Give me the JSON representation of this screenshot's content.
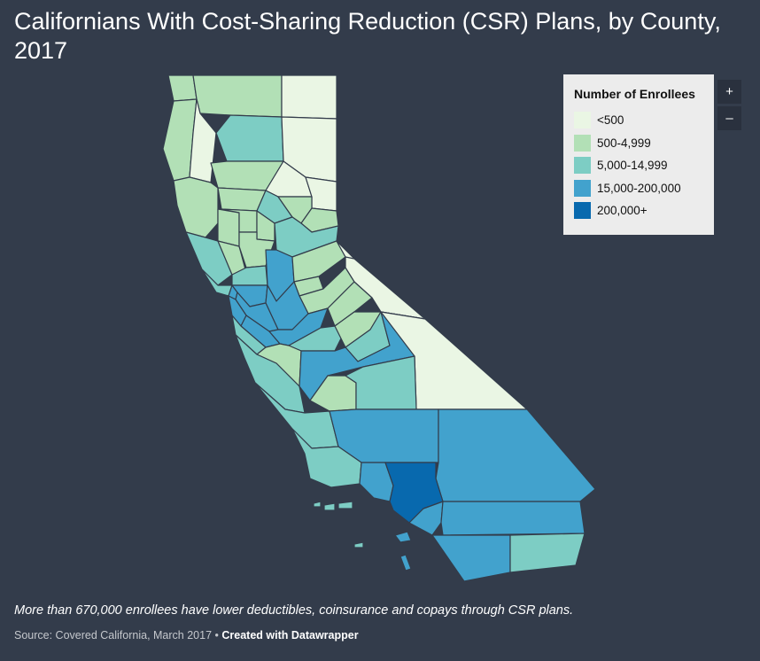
{
  "title": "Californians With Cost-Sharing Reduction (CSR) Plans, by County, 2017",
  "legend": {
    "title": "Number of Enrollees",
    "items": [
      {
        "label": "<500",
        "color": "#eaf6e4"
      },
      {
        "label": "500-4,999",
        "color": "#b2e0b6"
      },
      {
        "label": "5,000-14,999",
        "color": "#7dcdc4"
      },
      {
        "label": "15,000-200,000",
        "color": "#42a2cd"
      },
      {
        "label": "200,000+",
        "color": "#0869ae"
      }
    ]
  },
  "zoom": {
    "in_label": "+",
    "out_label": "–"
  },
  "note": "More than 670,000 enrollees have lower deductibles, coinsurance and copays through CSR plans.",
  "source": "Source: Covered California, March 2017",
  "separator": " • ",
  "credit": "Created with Datawrapper",
  "colors": {
    "background": "#333c4b",
    "county_border": "#333c4b"
  }
}
